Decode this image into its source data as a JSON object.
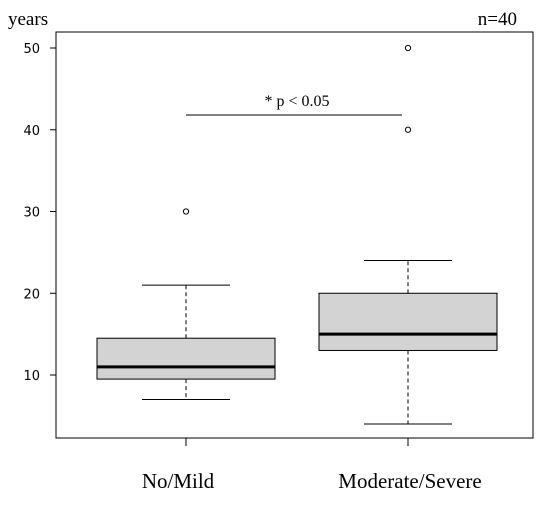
{
  "chart_data": {
    "type": "box",
    "y_unit_label": "years",
    "n_label": "n=40",
    "ylim": [
      3,
      52
    ],
    "y_ticks": [
      10,
      20,
      30,
      40,
      50
    ],
    "categories": [
      "No/Mild",
      "Moderate/Severe"
    ],
    "groups": [
      {
        "name": "No/Mild",
        "whisker_low": 7,
        "q1": 9.5,
        "median": 11,
        "q3": 14.5,
        "whisker_high": 21,
        "outliers": [
          30
        ]
      },
      {
        "name": "Moderate/Severe",
        "whisker_low": 4,
        "q1": 13,
        "median": 15,
        "q3": 20,
        "whisker_high": 24,
        "outliers": [
          40,
          50
        ]
      }
    ],
    "annotation": {
      "text": "* p < 0.05",
      "y": 41.8
    },
    "box_fill": "#d3d3d3",
    "grid": false
  }
}
